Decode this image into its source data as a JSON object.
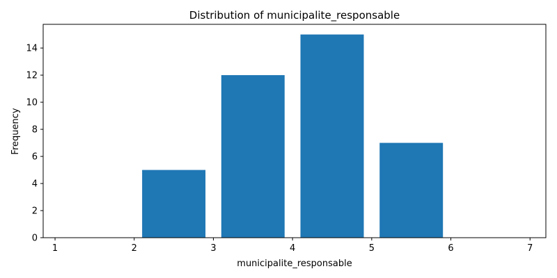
{
  "chart_data": {
    "type": "bar",
    "title": "Distribution of municipalite_responsable",
    "xlabel": "municipalite_responsable",
    "ylabel": "Frequency",
    "bars": [
      {
        "x_start": 2.1,
        "x_end": 2.9,
        "value": 5
      },
      {
        "x_start": 3.1,
        "x_end": 3.9,
        "value": 12
      },
      {
        "x_start": 4.1,
        "x_end": 4.9,
        "value": 15
      },
      {
        "x_start": 5.1,
        "x_end": 5.9,
        "value": 7
      }
    ],
    "xlim": [
      0.85,
      7.2
    ],
    "ylim": [
      0,
      15.75
    ],
    "xticks": [
      1,
      2,
      3,
      4,
      5,
      6,
      7
    ],
    "yticks": [
      0,
      2,
      4,
      6,
      8,
      10,
      12,
      14
    ],
    "bar_color": "#1f77b4",
    "grid": false,
    "legend": "none"
  }
}
